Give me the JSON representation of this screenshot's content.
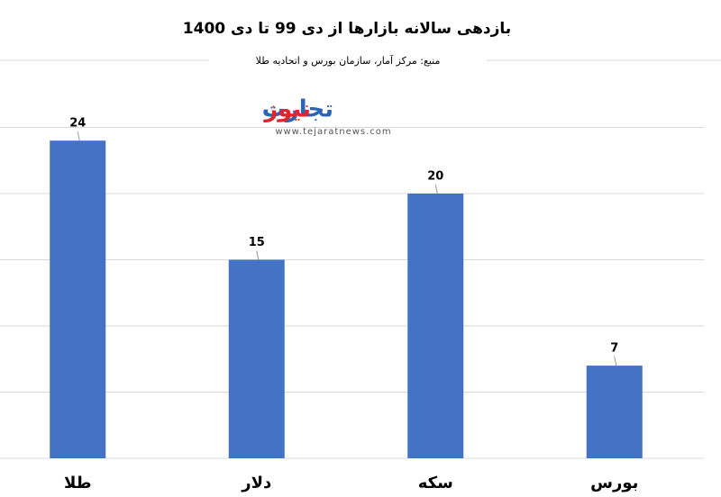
{
  "chart_data": {
    "type": "bar",
    "title": "بازدهی سالانه بازارها از دی 99 تا دی 1400",
    "subtitle": "منبع: مرکز آمار، سازمان بورس و اتحادیه طلا",
    "watermark": {
      "brand_a": "تجارت",
      "brand_b": "نیوز",
      "url": "www.tejaratnews.com"
    },
    "categories": [
      "طلا",
      "دلار",
      "سکه",
      "بورس"
    ],
    "values": [
      24,
      15,
      20,
      7
    ],
    "color": "#4472c4",
    "ylim": [
      0,
      25
    ],
    "yticks": [
      0,
      5,
      10,
      15,
      20,
      25
    ],
    "grid": true
  }
}
